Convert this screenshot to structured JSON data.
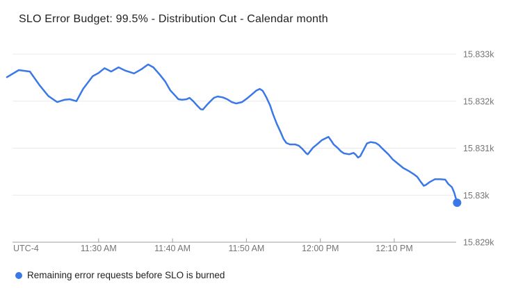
{
  "title": "SLO Error Budget: 99.5% - Distribution Cut - Calendar month",
  "legend": {
    "marker_color": "#3b78e7",
    "label": "Remaining error requests before SLO is burned"
  },
  "colors": {
    "background": "#ffffff",
    "line": "#3b78e7",
    "end_marker": "#3b78e7",
    "gridline": "#e8e8e8",
    "axis_line": "#9e9e9e",
    "axis_label": "#757575",
    "title_text": "#212121",
    "legend_text": "#212121"
  },
  "chart_data": {
    "type": "line",
    "title": "SLO Error Budget: 99.5% - Distribution Cut - Calendar month",
    "grid": "horizontal-only",
    "legend_position": "bottom-left",
    "x_axis": {
      "timezone_label": "UTC-4",
      "unit": "minutes from series start",
      "range": [
        0,
        60.9
      ],
      "ticks": [
        {
          "label": "11:30 AM",
          "t": 12.4
        },
        {
          "label": "11:40 AM",
          "t": 22.4
        },
        {
          "label": "11:50 AM",
          "t": 32.4
        },
        {
          "label": "12:00 PM",
          "t": 42.4
        },
        {
          "label": "12:10 PM",
          "t": 52.4
        }
      ]
    },
    "y_axis": {
      "side": "right",
      "range": [
        15829,
        15833
      ],
      "ticks": [
        {
          "label": "15.833k",
          "value": 15833
        },
        {
          "label": "15.832k",
          "value": 15832
        },
        {
          "label": "15.831k",
          "value": 15831
        },
        {
          "label": "15.83k",
          "value": 15830
        },
        {
          "label": "15.829k",
          "value": 15829
        }
      ]
    },
    "series": [
      {
        "name": "Remaining error requests before SLO is burned",
        "color": "#3b78e7",
        "end_marker": true,
        "last_value": 15829.84,
        "points": [
          [
            0.0,
            15832.51
          ],
          [
            1.6,
            15832.66
          ],
          [
            3.1,
            15832.63
          ],
          [
            4.4,
            15832.34
          ],
          [
            5.6,
            15832.11
          ],
          [
            6.8,
            15831.98
          ],
          [
            7.8,
            15832.03
          ],
          [
            8.5,
            15832.04
          ],
          [
            9.4,
            15832.0
          ],
          [
            10.3,
            15832.26
          ],
          [
            11.6,
            15832.53
          ],
          [
            12.4,
            15832.6
          ],
          [
            13.2,
            15832.7
          ],
          [
            14.1,
            15832.63
          ],
          [
            15.1,
            15832.72
          ],
          [
            16.0,
            15832.65
          ],
          [
            17.2,
            15832.59
          ],
          [
            18.2,
            15832.68
          ],
          [
            19.1,
            15832.78
          ],
          [
            19.8,
            15832.72
          ],
          [
            20.7,
            15832.56
          ],
          [
            21.4,
            15832.42
          ],
          [
            22.1,
            15832.23
          ],
          [
            22.8,
            15832.11
          ],
          [
            23.2,
            15832.04
          ],
          [
            23.7,
            15832.03
          ],
          [
            24.3,
            15832.04
          ],
          [
            24.7,
            15832.07
          ],
          [
            25.2,
            15832.0
          ],
          [
            25.7,
            15831.91
          ],
          [
            26.2,
            15831.83
          ],
          [
            26.5,
            15831.82
          ],
          [
            27.0,
            15831.91
          ],
          [
            27.6,
            15832.01
          ],
          [
            28.0,
            15832.07
          ],
          [
            28.5,
            15832.1
          ],
          [
            29.2,
            15832.08
          ],
          [
            29.8,
            15832.04
          ],
          [
            30.4,
            15831.98
          ],
          [
            31.0,
            15831.95
          ],
          [
            31.8,
            15831.98
          ],
          [
            32.5,
            15832.06
          ],
          [
            33.1,
            15832.14
          ],
          [
            33.7,
            15832.22
          ],
          [
            34.2,
            15832.26
          ],
          [
            34.6,
            15832.22
          ],
          [
            35.1,
            15832.08
          ],
          [
            35.6,
            15831.91
          ],
          [
            36.0,
            15831.72
          ],
          [
            36.5,
            15831.52
          ],
          [
            37.0,
            15831.35
          ],
          [
            37.4,
            15831.2
          ],
          [
            37.8,
            15831.11
          ],
          [
            38.3,
            15831.08
          ],
          [
            39.0,
            15831.08
          ],
          [
            39.5,
            15831.05
          ],
          [
            40.0,
            15830.98
          ],
          [
            40.5,
            15830.89
          ],
          [
            40.7,
            15830.87
          ],
          [
            41.4,
            15831.01
          ],
          [
            42.1,
            15831.1
          ],
          [
            42.6,
            15831.17
          ],
          [
            43.1,
            15831.21
          ],
          [
            43.5,
            15831.24
          ],
          [
            43.9,
            15831.15
          ],
          [
            44.2,
            15831.08
          ],
          [
            44.7,
            15831.01
          ],
          [
            45.2,
            15830.93
          ],
          [
            45.6,
            15830.89
          ],
          [
            46.3,
            15830.87
          ],
          [
            46.9,
            15830.9
          ],
          [
            47.2,
            15830.86
          ],
          [
            47.5,
            15830.8
          ],
          [
            47.8,
            15830.83
          ],
          [
            48.3,
            15830.98
          ],
          [
            48.7,
            15831.1
          ],
          [
            49.2,
            15831.13
          ],
          [
            49.9,
            15831.11
          ],
          [
            50.3,
            15831.07
          ],
          [
            50.8,
            15830.99
          ],
          [
            51.6,
            15830.87
          ],
          [
            52.2,
            15830.76
          ],
          [
            52.9,
            15830.67
          ],
          [
            53.6,
            15830.58
          ],
          [
            54.4,
            15830.51
          ],
          [
            55.0,
            15830.45
          ],
          [
            55.5,
            15830.39
          ],
          [
            56.0,
            15830.28
          ],
          [
            56.4,
            15830.2
          ],
          [
            56.7,
            15830.22
          ],
          [
            57.2,
            15830.28
          ],
          [
            57.9,
            15830.34
          ],
          [
            58.6,
            15830.34
          ],
          [
            59.3,
            15830.33
          ],
          [
            59.7,
            15830.24
          ],
          [
            60.2,
            15830.17
          ],
          [
            60.5,
            15830.06
          ],
          [
            60.9,
            15829.84
          ]
        ]
      }
    ]
  }
}
